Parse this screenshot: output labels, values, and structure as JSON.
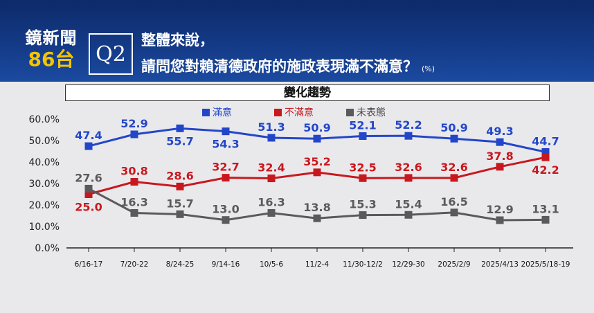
{
  "header": {
    "logo_line1": "鏡新聞",
    "logo_line2": "86台",
    "question_tag": "Q2",
    "question_line1": "整體來說，",
    "question_line2": "請問您對賴清德政府的施政表現滿不滿意？",
    "unit": "(%)"
  },
  "colors": {
    "satisfied": "#2346c8",
    "dissatisfied": "#c8181e",
    "no_opinion": "#5a5a5a",
    "header_bg": "#14398a",
    "logo_accent": "#f5c400"
  },
  "chart_data": {
    "type": "line",
    "title": "變化趨勢",
    "categories": [
      "6/16-17",
      "7/20-22",
      "8/24-25",
      "9/14-16",
      "10/5-6",
      "11/2-4",
      "11/30-12/2",
      "12/29-30",
      "2025/2/9",
      "2025/4/13",
      "2025/5/18-19"
    ],
    "y_ticks": [
      "0.0%",
      "10.0%",
      "20.0%",
      "30.0%",
      "40.0%",
      "50.0%",
      "60.0%"
    ],
    "ylim": [
      0,
      60
    ],
    "grid": false,
    "legend_position": "top",
    "series": [
      {
        "name": "滿意",
        "values": [
          47.4,
          52.9,
          55.7,
          54.3,
          51.3,
          50.9,
          52.1,
          52.2,
          50.9,
          49.3,
          44.7
        ],
        "labels": [
          "47.4",
          "52.9",
          "55.7",
          "54.3",
          "51.3",
          "50.9",
          "52.1",
          "52.2",
          "50.9",
          "49.3",
          "44.7"
        ]
      },
      {
        "name": "不滿意",
        "values": [
          25.0,
          30.8,
          28.6,
          32.7,
          32.4,
          35.2,
          32.5,
          32.6,
          32.6,
          37.8,
          42.2
        ],
        "labels": [
          "25.0",
          "30.8",
          "28.6",
          "32.7",
          "32.4",
          "35.2",
          "32.5",
          "32.6",
          "32.6",
          "37.8",
          "42.2"
        ]
      },
      {
        "name": "未表態",
        "values": [
          27.6,
          16.3,
          15.7,
          13.0,
          16.3,
          13.8,
          15.3,
          15.4,
          16.5,
          12.9,
          13.1
        ],
        "labels": [
          "27.6",
          "16.3",
          "15.7",
          "13.0",
          "16.3",
          "13.8",
          "15.3",
          "15.4",
          "16.5",
          "12.9",
          "13.1"
        ]
      }
    ]
  }
}
